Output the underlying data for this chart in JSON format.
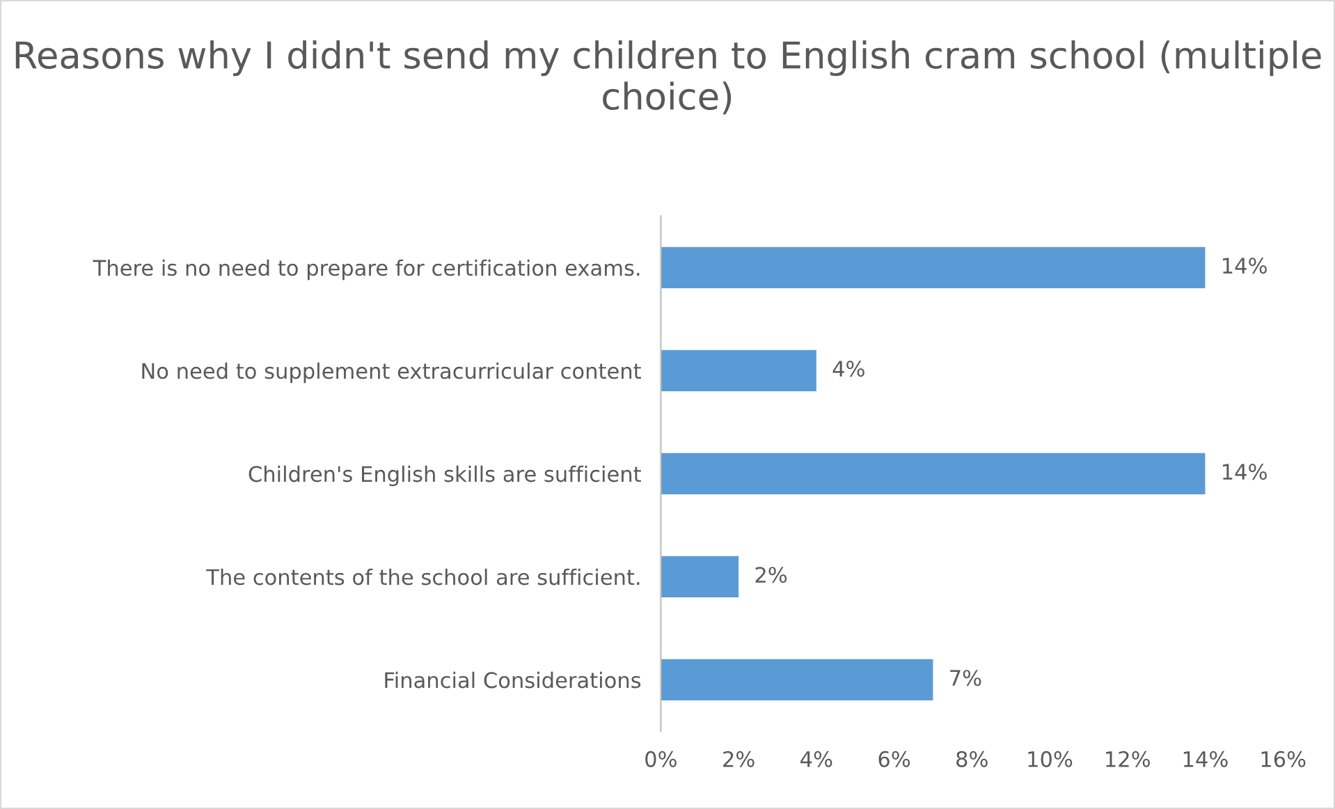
{
  "chart_data": {
    "type": "bar",
    "orientation": "horizontal",
    "title": "Reasons why I didn't send my children to English cram school (multiple choice)",
    "categories": [
      "There is no need to prepare for certification exams.",
      "No need to supplement extracurricular content",
      "Children's English skills are sufficient",
      "The contents of the school are sufficient.",
      "Financial Considerations"
    ],
    "values": [
      14,
      4,
      14,
      2,
      7
    ],
    "value_labels": [
      "14%",
      "4%",
      "14%",
      "2%",
      "7%"
    ],
    "color": "#5b9bd5",
    "xlim": [
      0,
      16
    ],
    "xticks": [
      {
        "value": 0,
        "label": "0%"
      },
      {
        "value": 2,
        "label": "2%"
      },
      {
        "value": 4,
        "label": "4%"
      },
      {
        "value": 6,
        "label": "6%"
      },
      {
        "value": 8,
        "label": "8%"
      },
      {
        "value": 10,
        "label": "10%"
      },
      {
        "value": 12,
        "label": "12%"
      },
      {
        "value": 14,
        "label": "14%"
      },
      {
        "value": 16,
        "label": "16%"
      }
    ],
    "grid": false,
    "legend": false
  }
}
